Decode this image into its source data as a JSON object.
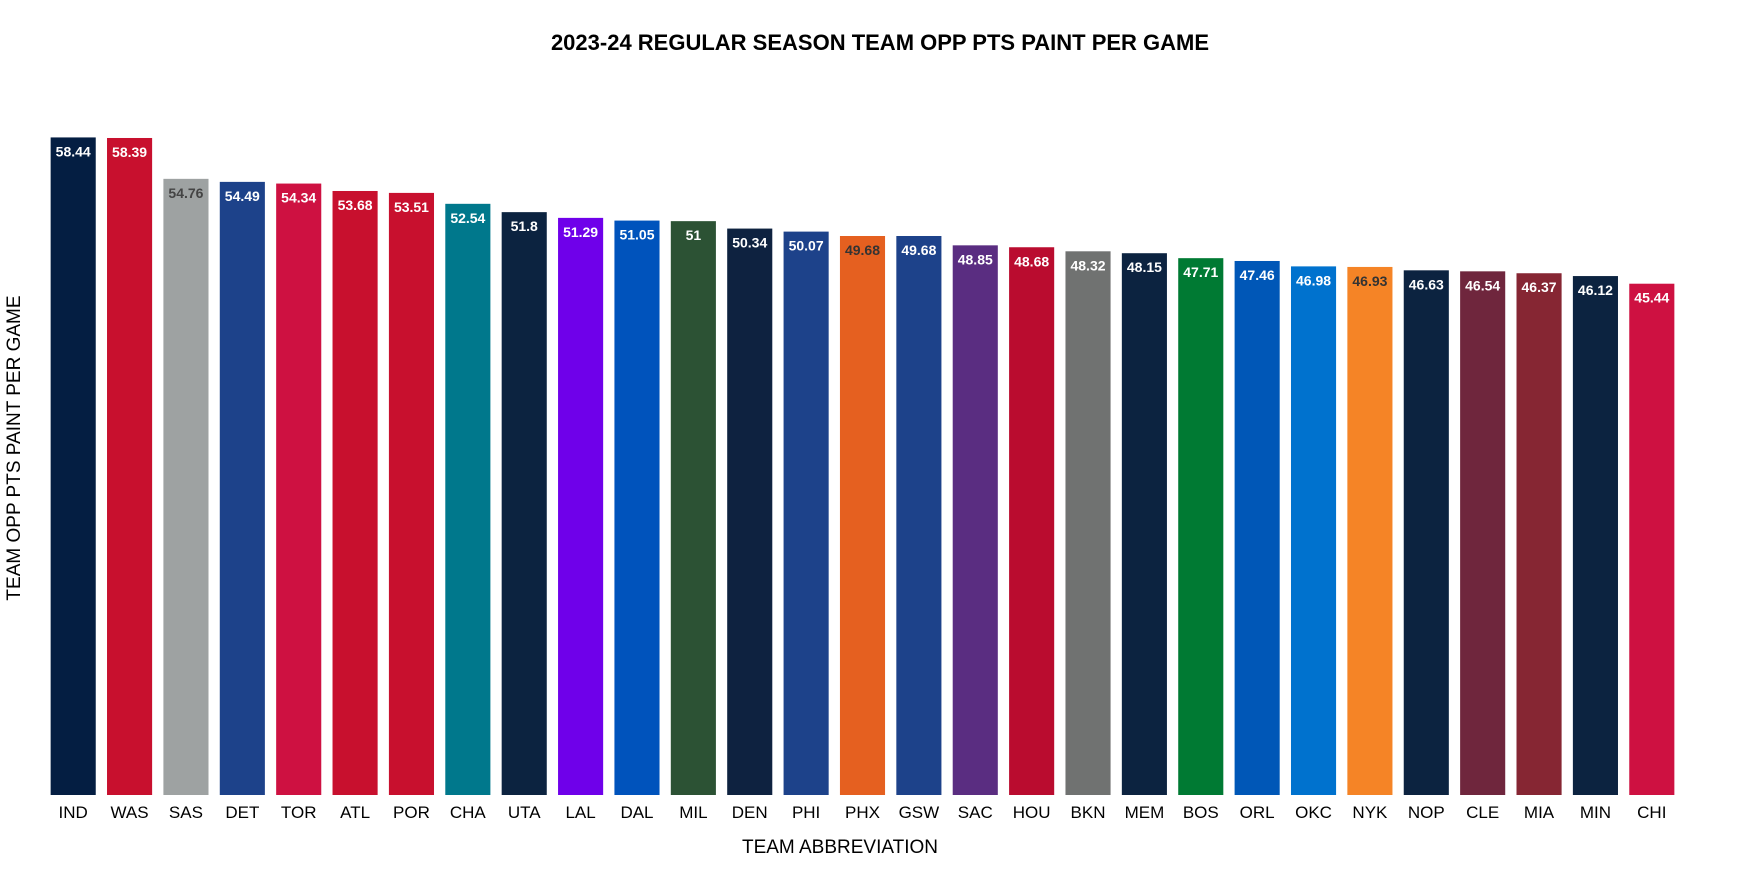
{
  "chart_data": {
    "type": "bar",
    "title": "2023-24 REGULAR SEASON TEAM OPP PTS PAINT PER GAME",
    "xlabel": "TEAM ABBREVIATION",
    "ylabel": "TEAM OPP PTS PAINT PER GAME",
    "ylim": [
      0,
      61.5
    ],
    "grid": false,
    "categories": [
      "IND",
      "WAS",
      "SAS",
      "DET",
      "TOR",
      "ATL",
      "POR",
      "CHA",
      "UTA",
      "LAL",
      "DAL",
      "MIL",
      "DEN",
      "PHI",
      "PHX",
      "GSW",
      "SAC",
      "HOU",
      "BKN",
      "MEM",
      "BOS",
      "ORL",
      "OKC",
      "NYK",
      "NOP",
      "CLE",
      "MIA",
      "MIN",
      "CHI"
    ],
    "values": [
      58.44,
      58.39,
      54.76,
      54.49,
      54.34,
      53.68,
      53.51,
      52.54,
      51.8,
      51.29,
      51.05,
      51,
      50.34,
      50.07,
      49.68,
      49.68,
      48.85,
      48.68,
      48.32,
      48.15,
      47.71,
      47.46,
      46.98,
      46.93,
      46.63,
      46.54,
      46.37,
      46.12,
      45.44
    ],
    "value_labels": [
      "58.44",
      "58.39",
      "54.76",
      "54.49",
      "54.34",
      "53.68",
      "53.51",
      "52.54",
      "51.8",
      "51.29",
      "51.05",
      "51",
      "50.34",
      "50.07",
      "49.68",
      "49.68",
      "48.85",
      "48.68",
      "48.32",
      "48.15",
      "47.71",
      "47.46",
      "46.98",
      "46.93",
      "46.63",
      "46.54",
      "46.37",
      "46.12",
      "45.44"
    ],
    "colors": [
      "#041E42",
      "#C8102E",
      "#9EA2A2",
      "#1D428A",
      "#CE1141",
      "#C8102E",
      "#C8102E",
      "#00788C",
      "#0C2340",
      "#6F00EA",
      "#0053BC",
      "#2C5234",
      "#0E2240",
      "#1D428A",
      "#E56020",
      "#1D428A",
      "#5A2D81",
      "#BA0C2F",
      "#707271",
      "#0C2340",
      "#007A33",
      "#0057B7",
      "#0072CE",
      "#F58426",
      "#0C2340",
      "#6F263D",
      "#862633",
      "#0C2340",
      "#CE1141"
    ],
    "label_colors": [
      "#ffffff",
      "#ffffff",
      "#444444",
      "#ffffff",
      "#ffffff",
      "#ffffff",
      "#ffffff",
      "#ffffff",
      "#ffffff",
      "#ffffff",
      "#ffffff",
      "#ffffff",
      "#ffffff",
      "#ffffff",
      "#333333",
      "#ffffff",
      "#ffffff",
      "#ffffff",
      "#ffffff",
      "#ffffff",
      "#ffffff",
      "#ffffff",
      "#ffffff",
      "#333333",
      "#ffffff",
      "#ffffff",
      "#ffffff",
      "#ffffff",
      "#ffffff"
    ]
  }
}
